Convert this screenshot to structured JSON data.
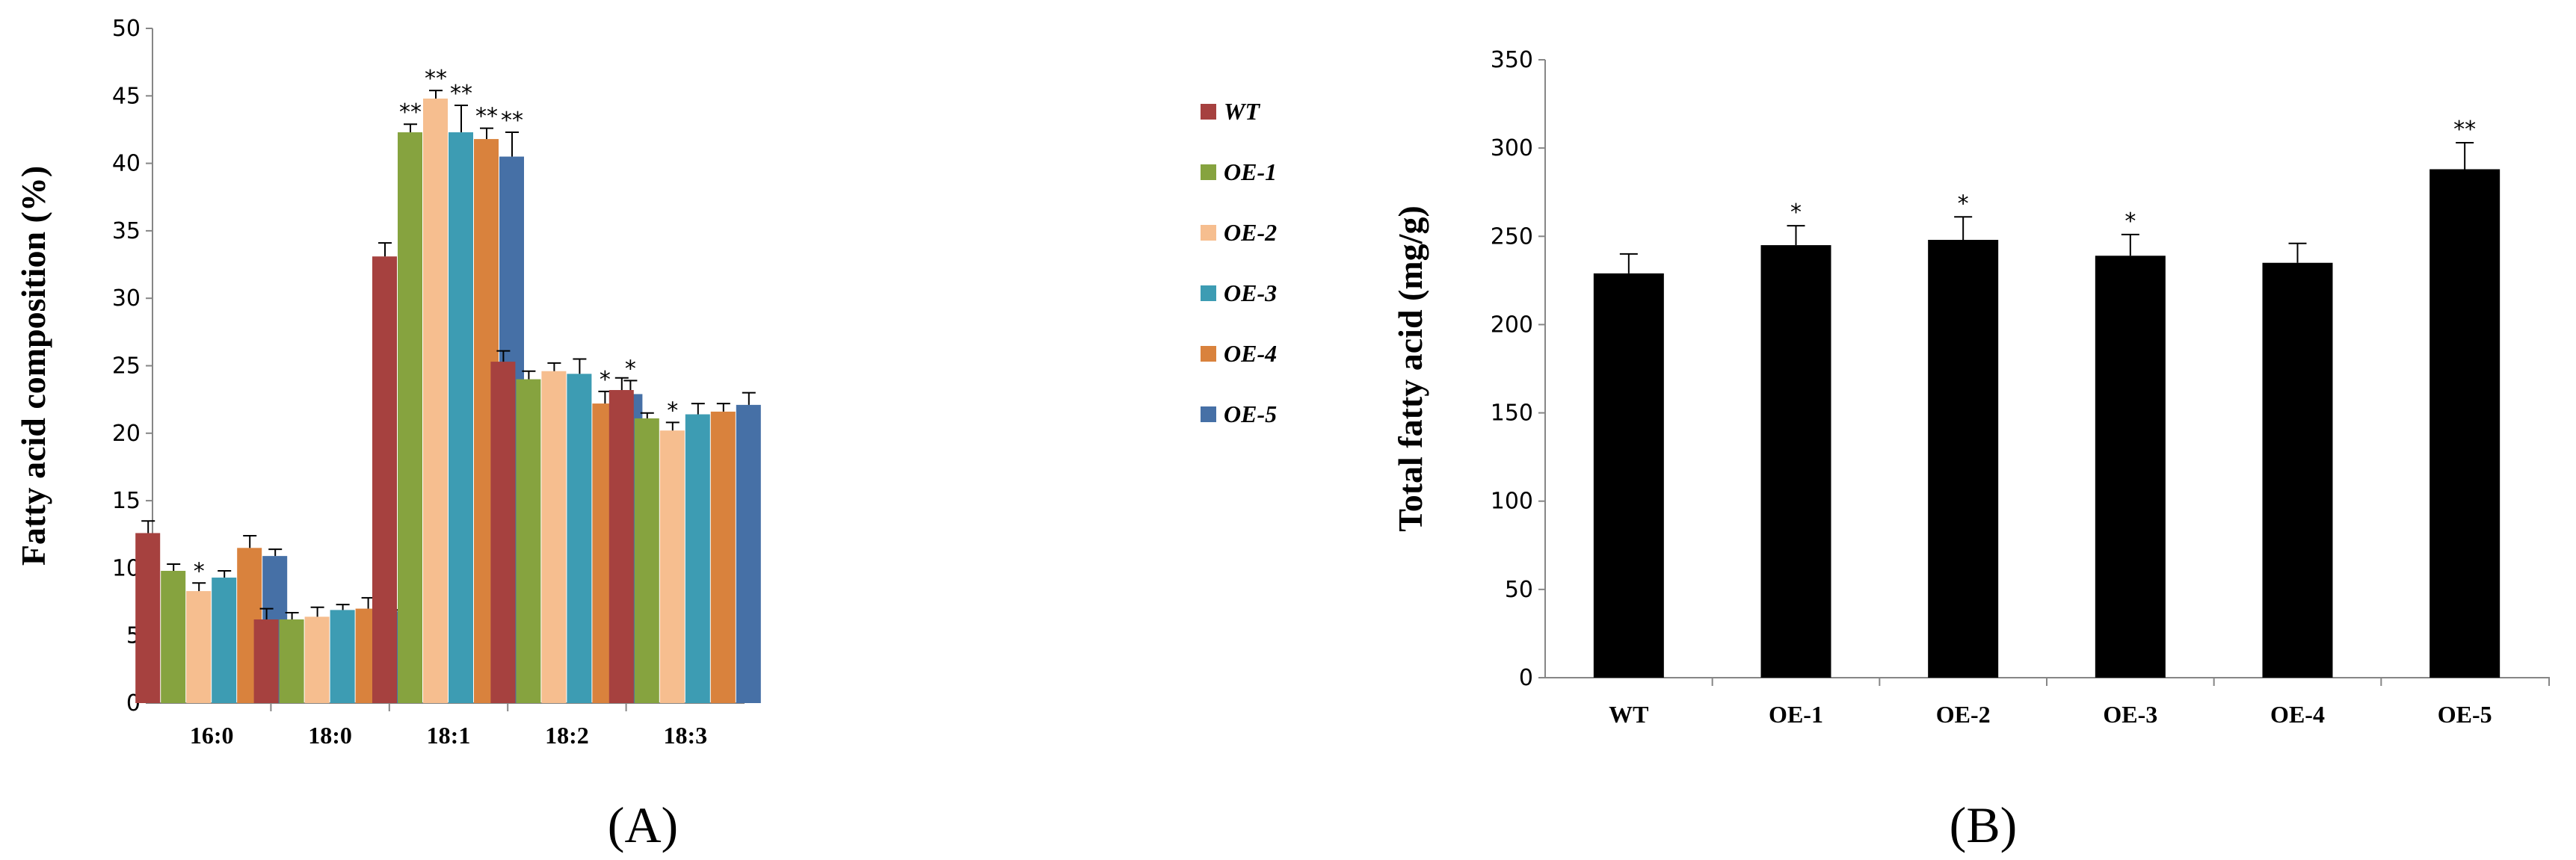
{
  "chart_data": [
    {
      "type": "bar",
      "panel_label": "(A)",
      "title": "",
      "xlabel": "",
      "ylabel": "Fatty acid composition (%)",
      "ylim": [
        0,
        50
      ],
      "yticks": [
        0,
        5,
        10,
        15,
        20,
        25,
        30,
        35,
        40,
        45,
        50
      ],
      "categories": [
        "16:0",
        "18:0",
        "18:1",
        "18:2",
        "18:3"
      ],
      "legend_position": "right",
      "series": [
        {
          "name": "WT",
          "color": "#A6413F",
          "values": [
            12.6,
            6.2,
            33.1,
            25.3,
            23.2
          ],
          "errors": [
            0.9,
            0.8,
            1.0,
            0.8,
            0.9
          ],
          "sig": [
            "",
            "",
            "",
            "",
            ""
          ]
        },
        {
          "name": "OE-1",
          "color": "#86A33F",
          "values": [
            9.8,
            6.2,
            42.3,
            24.0,
            21.1
          ],
          "errors": [
            0.5,
            0.5,
            0.6,
            0.6,
            0.4
          ],
          "sig": [
            "",
            "",
            "**",
            "",
            ""
          ]
        },
        {
          "name": "OE-2",
          "color": "#F6BE8F",
          "values": [
            8.3,
            6.4,
            44.8,
            24.6,
            20.2
          ],
          "errors": [
            0.6,
            0.7,
            0.6,
            0.6,
            0.6
          ],
          "sig": [
            "*",
            "",
            "**",
            "",
            "*"
          ]
        },
        {
          "name": "OE-3",
          "color": "#3D9CB3",
          "values": [
            9.3,
            6.9,
            42.3,
            24.4,
            21.4
          ],
          "errors": [
            0.5,
            0.4,
            2.0,
            1.1,
            0.8
          ],
          "sig": [
            "",
            "",
            "**",
            "",
            ""
          ]
        },
        {
          "name": "OE-4",
          "color": "#D9823D",
          "values": [
            11.5,
            7.0,
            41.8,
            22.2,
            21.6
          ],
          "errors": [
            0.9,
            0.8,
            0.8,
            0.9,
            0.6
          ],
          "sig": [
            "",
            "",
            "**",
            "*",
            ""
          ]
        },
        {
          "name": "OE-5",
          "color": "#4670A6",
          "values": [
            10.9,
            6.8,
            40.5,
            22.9,
            22.1
          ],
          "errors": [
            0.5,
            0.1,
            1.8,
            1.0,
            0.9
          ],
          "sig": [
            "",
            "",
            "**",
            "*",
            ""
          ]
        }
      ]
    },
    {
      "type": "bar",
      "panel_label": "(B)",
      "title": "",
      "xlabel": "",
      "ylabel": "Total fatty acid (mg/g)",
      "ylim": [
        0,
        350
      ],
      "yticks": [
        0,
        50,
        100,
        150,
        200,
        250,
        300,
        350
      ],
      "categories": [
        "WT",
        "OE-1",
        "OE-2",
        "OE-3",
        "OE-4",
        "OE-5"
      ],
      "color": "#000000",
      "values": [
        229,
        245,
        248,
        239,
        235,
        288
      ],
      "errors": [
        11,
        11,
        13,
        12,
        11,
        15
      ],
      "sig": [
        "",
        "*",
        "*",
        "*",
        "",
        "**"
      ]
    }
  ]
}
